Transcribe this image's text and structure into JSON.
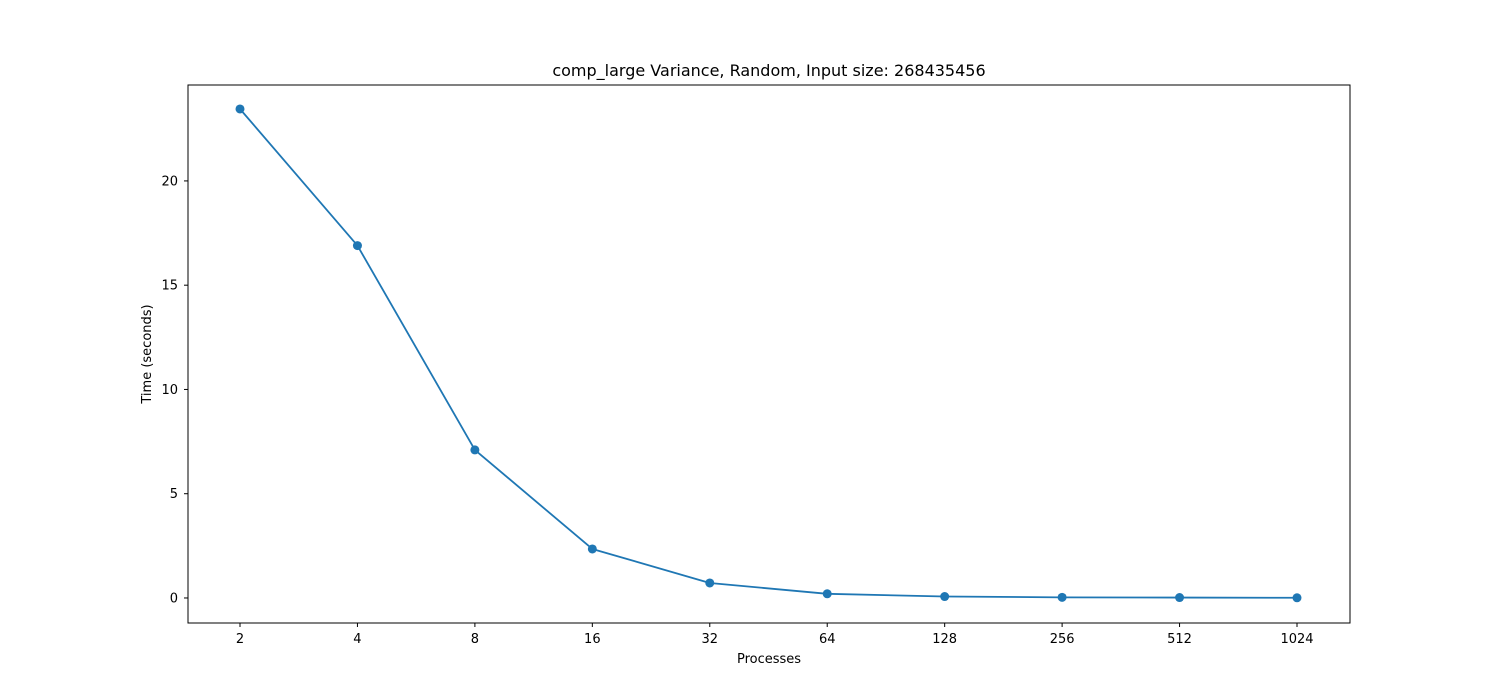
{
  "chart_data": {
    "type": "line",
    "title": "comp_large Variance, Random, Input size: 268435456",
    "xlabel": "Processes",
    "ylabel": "Time (seconds)",
    "x_scale": "log2",
    "categories": [
      "2",
      "4",
      "8",
      "16",
      "32",
      "64",
      "128",
      "256",
      "512",
      "1024"
    ],
    "y_ticks": [
      0,
      5,
      10,
      15,
      20
    ],
    "ylim": [
      -1.2,
      24.6
    ],
    "grid": false,
    "legend": "none",
    "series": [
      {
        "color": "#1f77b4",
        "marker": "circle",
        "values": [
          23.45,
          16.9,
          7.1,
          2.35,
          0.72,
          0.2,
          0.07,
          0.03,
          0.02,
          0.01
        ]
      }
    ]
  }
}
